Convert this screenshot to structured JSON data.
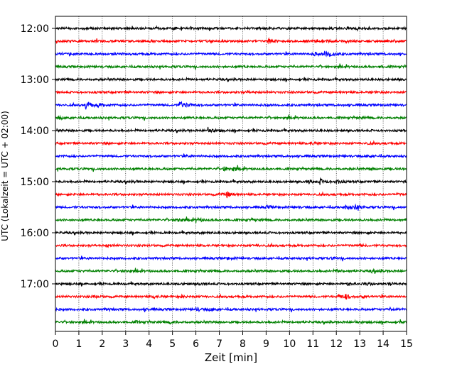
{
  "chart_data": {
    "type": "line",
    "xlabel": "Zeit  [min]",
    "ylabel": "UTC (Lokalzeit = UTC + 02:00)",
    "xlim": [
      0,
      15
    ],
    "x_ticks": [
      0,
      1,
      2,
      3,
      4,
      5,
      6,
      7,
      8,
      9,
      10,
      11,
      12,
      13,
      14,
      15
    ],
    "x_grid": true,
    "y_grid": false,
    "y_tick_labels": [
      "12:00",
      "13:00",
      "14:00",
      "15:00",
      "16:00",
      "17:00"
    ],
    "y_tick_rows": [
      0,
      4,
      8,
      12,
      16,
      20
    ],
    "trace_colors": [
      "#000000",
      "#ff0000",
      "#0000ff",
      "#008000"
    ],
    "traces": [
      {
        "start": "12:00",
        "events": [
          [
            5.0,
            0.6
          ],
          [
            11.8,
            0.5
          ]
        ]
      },
      {
        "start": "12:15",
        "events": [
          [
            9.1,
            2.8
          ],
          [
            11.4,
            1.5
          ],
          [
            12.4,
            0.9
          ]
        ]
      },
      {
        "start": "12:30",
        "events": [
          [
            11.0,
            2.2
          ],
          [
            11.5,
            3.0
          ],
          [
            11.7,
            3.4
          ]
        ]
      },
      {
        "start": "12:45",
        "events": [
          [
            8.0,
            0.5
          ],
          [
            13.8,
            0.8
          ]
        ]
      },
      {
        "start": "13:00",
        "events": [
          [
            14.6,
            0.5
          ]
        ]
      },
      {
        "start": "13:15",
        "events": [
          [
            8.2,
            0.9
          ],
          [
            13.5,
            0.7
          ]
        ]
      },
      {
        "start": "13:30",
        "events": [
          [
            1.3,
            6.0
          ],
          [
            1.8,
            2.0
          ],
          [
            5.3,
            5.0
          ],
          [
            5.6,
            1.8
          ]
        ]
      },
      {
        "start": "13:45",
        "events": [
          [
            0.15,
            1.5
          ],
          [
            12.9,
            0.9
          ]
        ]
      },
      {
        "start": "14:00",
        "events": [
          [
            6.5,
            4.2
          ]
        ]
      },
      {
        "start": "14:15",
        "events": [
          [
            10.9,
            1.8
          ],
          [
            13.3,
            0.8
          ]
        ]
      },
      {
        "start": "14:30",
        "events": [
          [
            13.3,
            0.8
          ],
          [
            5.6,
            0.5
          ]
        ]
      },
      {
        "start": "14:45",
        "events": [
          [
            7.2,
            3.0
          ],
          [
            7.6,
            2.2
          ],
          [
            13.4,
            1.2
          ]
        ]
      },
      {
        "start": "15:00",
        "events": [
          [
            10.8,
            2.5
          ],
          [
            11.3,
            3.2
          ],
          [
            12.0,
            2.4
          ],
          [
            3.4,
            0.6
          ]
        ]
      },
      {
        "start": "15:15",
        "events": [
          [
            7.0,
            1.2
          ],
          [
            7.3,
            3.6
          ],
          [
            14.6,
            0.7
          ]
        ]
      },
      {
        "start": "15:30",
        "events": [
          [
            9.0,
            1.8
          ],
          [
            12.4,
            2.8
          ],
          [
            12.8,
            2.6
          ],
          [
            10.2,
            0.8
          ]
        ]
      },
      {
        "start": "15:45",
        "events": [
          [
            5.2,
            3.0
          ],
          [
            6.0,
            2.8
          ],
          [
            8.4,
            1.0
          ]
        ]
      },
      {
        "start": "16:00",
        "events": [
          [
            6.3,
            0.7
          ],
          [
            13.2,
            0.6
          ]
        ]
      },
      {
        "start": "16:15",
        "events": [
          [
            2.2,
            1.2
          ],
          [
            8.6,
            0.8
          ],
          [
            13.0,
            0.7
          ]
        ]
      },
      {
        "start": "16:30",
        "events": [
          [
            7.3,
            1.4
          ],
          [
            11.8,
            0.8
          ]
        ]
      },
      {
        "start": "16:45",
        "events": [
          [
            3.0,
            0.7
          ],
          [
            12.0,
            1.4
          ],
          [
            13.5,
            1.4
          ]
        ]
      },
      {
        "start": "17:00",
        "events": [
          [
            6.1,
            0.9
          ],
          [
            12.5,
            1.8
          ],
          [
            13.3,
            1.6
          ],
          [
            14.2,
            1.2
          ]
        ]
      },
      {
        "start": "17:15",
        "events": [
          [
            1.6,
            1.6
          ],
          [
            4.2,
            1.6
          ],
          [
            5.4,
            1.4
          ],
          [
            12.1,
            2.5
          ],
          [
            12.4,
            2.6
          ],
          [
            13.1,
            1.4
          ]
        ]
      },
      {
        "start": "17:30",
        "events": [
          [
            3.8,
            1.4
          ],
          [
            6.0,
            2.2
          ],
          [
            6.6,
            1.4
          ],
          [
            14.3,
            1.2
          ],
          [
            2.2,
            0.9
          ]
        ]
      },
      {
        "start": "17:45",
        "events": [
          [
            3.4,
            1.4
          ],
          [
            4.9,
            1.2
          ],
          [
            12.8,
            1.0
          ],
          [
            14.7,
            1.0
          ]
        ]
      }
    ]
  }
}
